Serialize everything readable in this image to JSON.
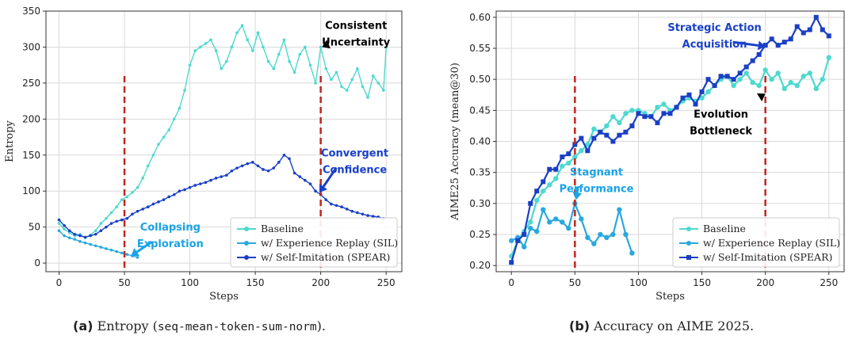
{
  "colors": {
    "baseline": "#4dd9cf",
    "sil": "#29a8e0",
    "spear": "#1a3fc4",
    "vline": "#c0261c",
    "annot_base": "#3ed6cc",
    "annot_sil": "#1aa3e6",
    "annot_spear": "#1840c8"
  },
  "captions": {
    "a_label": "(a)",
    "a_text": "Entropy (",
    "a_code": "seq-mean-token-sum-norm",
    "a_end": ").",
    "b_label": "(b)",
    "b_text": "Accuracy on AIME 2025."
  },
  "chart_data": [
    {
      "type": "line",
      "xlabel": "Steps",
      "ylabel": "Entropy",
      "xlim": [
        -10,
        262
      ],
      "ylim": [
        -12,
        350
      ],
      "xticks": [
        0,
        50,
        100,
        150,
        200,
        250
      ],
      "yticks": [
        0,
        50,
        100,
        150,
        200,
        250,
        300,
        350
      ],
      "grid": true,
      "vlines": [
        50,
        200
      ],
      "legend": {
        "placement": "bottom-right",
        "entries": [
          "Baseline",
          "w/ Experience Replay (SIL)",
          "w/ Self-Imitation (SPEAR)"
        ]
      },
      "annotations": [
        {
          "lines": [
            "Consistent",
            "Uncertainty"
          ],
          "x": 227,
          "y": 325,
          "tx": 201,
          "ty": 300,
          "series": "baseline"
        },
        {
          "lines": [
            "Convergent",
            "Confidence"
          ],
          "x": 226,
          "y": 148,
          "tx": 199,
          "ty": 98,
          "series": "spear"
        },
        {
          "lines": [
            "Collapsing",
            "Exploration"
          ],
          "x": 85,
          "y": 45,
          "tx": 55,
          "ty": 10,
          "series": "sil"
        }
      ],
      "series": [
        {
          "name": "Baseline",
          "key": "baseline",
          "marker": "dot",
          "x": [
            0,
            4,
            8,
            12,
            16,
            20,
            24,
            28,
            32,
            36,
            40,
            44,
            48,
            52,
            56,
            60,
            64,
            68,
            72,
            76,
            80,
            84,
            88,
            92,
            96,
            100,
            104,
            108,
            112,
            116,
            120,
            124,
            128,
            132,
            136,
            140,
            144,
            148,
            152,
            156,
            160,
            164,
            168,
            172,
            176,
            180,
            184,
            188,
            192,
            196,
            200,
            204,
            208,
            212,
            216,
            220,
            224,
            228,
            232,
            236,
            240,
            244,
            248,
            250
          ],
          "values": [
            55,
            47,
            42,
            38,
            40,
            35,
            39,
            45,
            55,
            62,
            70,
            78,
            88,
            92,
            98,
            105,
            118,
            135,
            150,
            165,
            175,
            185,
            200,
            215,
            240,
            275,
            295,
            300,
            305,
            310,
            295,
            270,
            280,
            300,
            320,
            330,
            310,
            295,
            320,
            300,
            280,
            270,
            290,
            310,
            280,
            265,
            290,
            300,
            275,
            250,
            300,
            270,
            255,
            265,
            245,
            240,
            255,
            270,
            245,
            230,
            260,
            250,
            240,
            300
          ]
        },
        {
          "name": "w/ Experience Replay (SIL)",
          "key": "sil",
          "marker": "dot",
          "x": [
            0,
            4,
            8,
            12,
            16,
            20,
            24,
            28,
            32,
            36,
            40,
            44,
            48,
            52,
            56,
            60
          ],
          "values": [
            45,
            38,
            35,
            33,
            30,
            28,
            26,
            24,
            22,
            20,
            18,
            16,
            14,
            12,
            10,
            8
          ]
        },
        {
          "name": "w/ Self-Imitation (SPEAR)",
          "key": "spear",
          "marker": "dot",
          "x": [
            0,
            4,
            8,
            12,
            16,
            20,
            24,
            28,
            32,
            36,
            40,
            44,
            48,
            52,
            56,
            60,
            64,
            68,
            72,
            76,
            80,
            84,
            88,
            92,
            96,
            100,
            104,
            108,
            112,
            116,
            120,
            124,
            128,
            132,
            136,
            140,
            144,
            148,
            152,
            156,
            160,
            164,
            168,
            172,
            176,
            180,
            184,
            188,
            192,
            196,
            200,
            204,
            208,
            212,
            216,
            220,
            224,
            228,
            232,
            236,
            240,
            244,
            248
          ],
          "values": [
            60,
            52,
            45,
            40,
            38,
            36,
            38,
            40,
            45,
            50,
            55,
            58,
            60,
            62,
            68,
            72,
            75,
            78,
            82,
            85,
            88,
            92,
            95,
            100,
            102,
            105,
            108,
            110,
            112,
            115,
            118,
            120,
            122,
            128,
            132,
            135,
            138,
            140,
            135,
            130,
            128,
            132,
            140,
            150,
            145,
            125,
            120,
            115,
            110,
            100,
            95,
            88,
            82,
            80,
            78,
            75,
            72,
            70,
            68,
            66,
            65,
            64,
            62
          ]
        }
      ]
    },
    {
      "type": "line",
      "xlabel": "Steps",
      "ylabel": "AIME25 Accuracy (mean@30)",
      "xlim": [
        -12,
        262
      ],
      "ylim": [
        0.19,
        0.61
      ],
      "xticks": [
        0,
        50,
        100,
        150,
        200,
        250
      ],
      "yticks": [
        0.2,
        0.25,
        0.3,
        0.35,
        0.4,
        0.45,
        0.5,
        0.55,
        0.6
      ],
      "grid": true,
      "vlines": [
        50,
        200
      ],
      "legend": {
        "placement": "bottom-right",
        "entries": [
          "Baseline",
          "w/ Experience Replay (SIL)",
          "w/ Self-Imitation (SPEAR)"
        ]
      },
      "annotations": [
        {
          "lines": [
            "Strategic Action",
            "Acquisition"
          ],
          "x": 160,
          "y": 0.578,
          "tx": 200,
          "ty": 0.553,
          "series": "spear"
        },
        {
          "lines": [
            "Evolution",
            "Bottleneck"
          ],
          "x": 165,
          "y": 0.438,
          "tx": 200,
          "ty": 0.477,
          "series": "baseline"
        },
        {
          "lines": [
            "Stagnant",
            "Performance"
          ],
          "x": 67,
          "y": 0.345,
          "tx": 51,
          "ty": 0.306,
          "series": "sil"
        }
      ],
      "series": [
        {
          "name": "Baseline",
          "key": "baseline",
          "marker": "circle",
          "x": [
            0,
            5,
            10,
            15,
            20,
            25,
            30,
            35,
            40,
            45,
            50,
            55,
            60,
            65,
            70,
            75,
            80,
            85,
            90,
            95,
            100,
            105,
            110,
            115,
            120,
            125,
            130,
            135,
            140,
            145,
            150,
            155,
            160,
            165,
            170,
            175,
            180,
            185,
            190,
            195,
            200,
            205,
            210,
            215,
            220,
            225,
            230,
            235,
            240,
            245,
            250
          ],
          "values": [
            0.215,
            0.24,
            0.255,
            0.27,
            0.305,
            0.32,
            0.33,
            0.34,
            0.36,
            0.365,
            0.375,
            0.385,
            0.395,
            0.42,
            0.415,
            0.425,
            0.44,
            0.43,
            0.445,
            0.45,
            0.45,
            0.445,
            0.44,
            0.455,
            0.46,
            0.45,
            0.455,
            0.465,
            0.47,
            0.465,
            0.47,
            0.48,
            0.49,
            0.5,
            0.505,
            0.49,
            0.5,
            0.51,
            0.495,
            0.49,
            0.515,
            0.5,
            0.51,
            0.485,
            0.495,
            0.49,
            0.505,
            0.51,
            0.485,
            0.5,
            0.535
          ]
        },
        {
          "name": "w/ Experience Replay (SIL)",
          "key": "sil",
          "marker": "circle",
          "x": [
            0,
            5,
            10,
            15,
            20,
            25,
            30,
            35,
            40,
            45,
            50,
            55,
            60,
            65,
            70,
            75,
            80,
            85,
            90,
            95
          ],
          "values": [
            0.24,
            0.245,
            0.23,
            0.26,
            0.255,
            0.29,
            0.27,
            0.275,
            0.27,
            0.26,
            0.3,
            0.275,
            0.245,
            0.235,
            0.25,
            0.245,
            0.25,
            0.29,
            0.25,
            0.22
          ]
        },
        {
          "name": "w/ Self-Imitation (SPEAR)",
          "key": "spear",
          "marker": "square",
          "x": [
            0,
            5,
            10,
            15,
            20,
            25,
            30,
            35,
            40,
            45,
            50,
            55,
            60,
            65,
            70,
            75,
            80,
            85,
            90,
            95,
            100,
            105,
            110,
            115,
            120,
            125,
            130,
            135,
            140,
            145,
            150,
            155,
            160,
            165,
            170,
            175,
            180,
            185,
            190,
            195,
            200,
            205,
            210,
            215,
            220,
            225,
            230,
            235,
            240,
            245,
            250
          ],
          "values": [
            0.205,
            0.24,
            0.25,
            0.3,
            0.32,
            0.335,
            0.355,
            0.355,
            0.375,
            0.38,
            0.395,
            0.405,
            0.385,
            0.405,
            0.415,
            0.41,
            0.4,
            0.41,
            0.415,
            0.425,
            0.445,
            0.44,
            0.44,
            0.43,
            0.445,
            0.445,
            0.455,
            0.47,
            0.475,
            0.46,
            0.48,
            0.5,
            0.49,
            0.505,
            0.505,
            0.5,
            0.51,
            0.52,
            0.53,
            0.54,
            0.555,
            0.565,
            0.555,
            0.56,
            0.565,
            0.585,
            0.575,
            0.58,
            0.6,
            0.58,
            0.57
          ]
        }
      ]
    }
  ]
}
